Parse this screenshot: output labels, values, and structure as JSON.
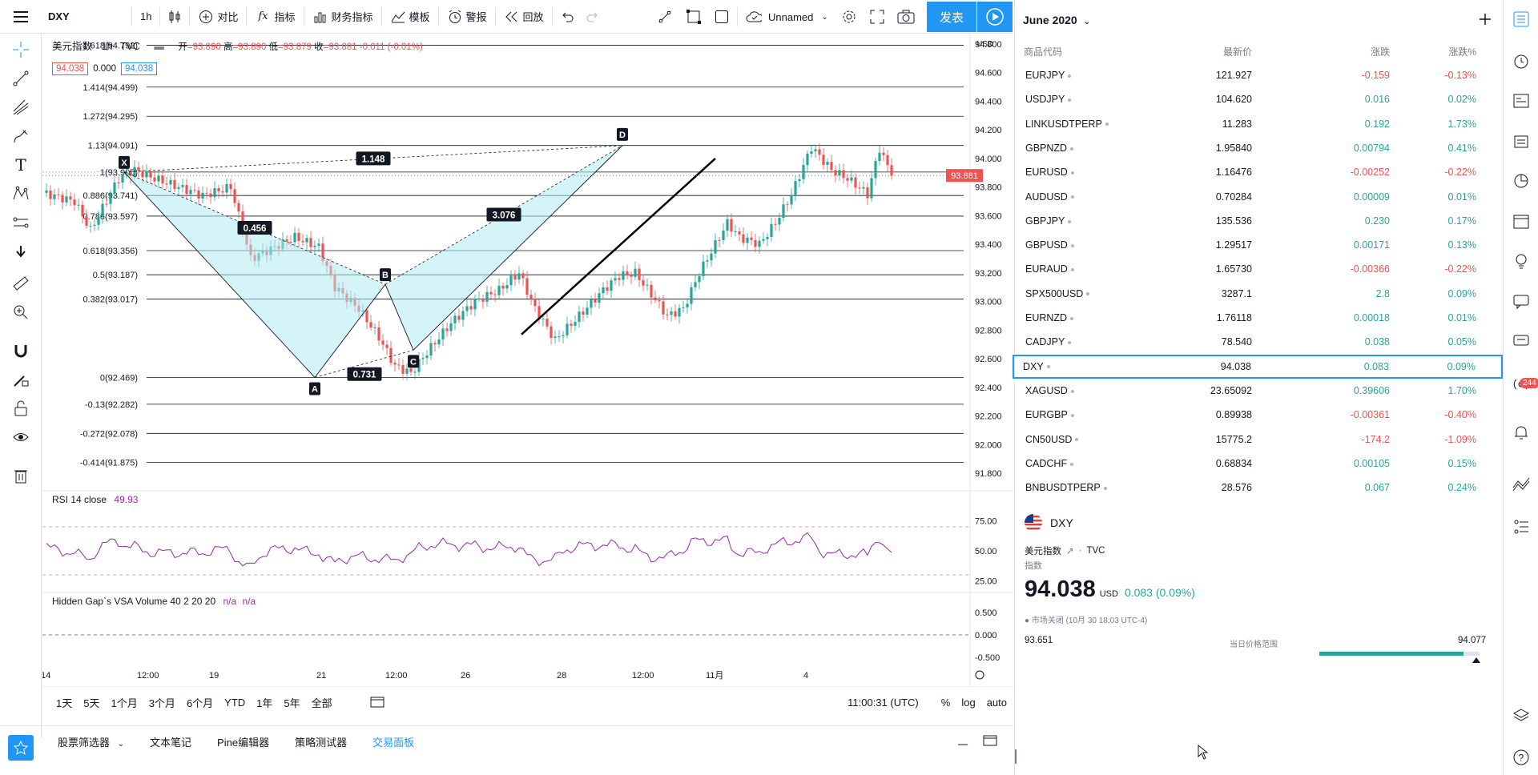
{
  "toolbar": {
    "symbol": "DXY",
    "interval": "1h",
    "compare": "对比",
    "indicators": "指标",
    "financials": "财务指标",
    "templates": "模板",
    "alert": "警报",
    "replay": "回放",
    "layout_name": "Unnamed",
    "publish": "发表"
  },
  "legend": {
    "name": "美元指数",
    "interval": "1h",
    "exchange": "TVC",
    "open_label": "开",
    "open": "=93.890",
    "high_label": "高",
    "high": "=93.890",
    "low_label": "低",
    "low": "=93.879",
    "close_label": "收",
    "close": "=93.881",
    "change": "-0.011 (-0.01%)",
    "bid": "94.038",
    "spread": "0.000",
    "ask": "94.038"
  },
  "fib_levels": [
    {
      "label": "1.618(94.792)",
      "value": 94.792
    },
    {
      "label": "1.414(94.499)",
      "value": 94.499
    },
    {
      "label": "1.272(94.295)",
      "value": 94.295
    },
    {
      "label": "1.13(94.091)",
      "value": 94.091
    },
    {
      "label": "1(93.905)",
      "value": 93.905
    },
    {
      "label": "0.886(93.741)",
      "value": 93.741
    },
    {
      "label": "0.786(93.597)",
      "value": 93.597
    },
    {
      "label": "0.618(93.356)",
      "value": 93.356
    },
    {
      "label": "0.5(93.187)",
      "value": 93.187
    },
    {
      "label": "0.382(93.017)",
      "value": 93.017
    },
    {
      "label": "0(92.469)",
      "value": 92.469
    },
    {
      "label": "-0.13(92.282)",
      "value": 92.282
    },
    {
      "label": "-0.272(92.078)",
      "value": 92.078
    },
    {
      "label": "-0.414(91.875)",
      "value": 91.875
    }
  ],
  "price_axis": {
    "unit": "USD",
    "ticks": [
      "94.800",
      "94.600",
      "94.400",
      "94.200",
      "94.000",
      "93.800",
      "93.600",
      "93.400",
      "93.200",
      "93.000",
      "92.800",
      "92.600",
      "92.400",
      "92.200",
      "92.000",
      "91.800"
    ],
    "last_price": "93.881"
  },
  "pattern": {
    "points": [
      "X",
      "A",
      "B",
      "C",
      "D"
    ],
    "ratios": [
      "1.148",
      "0.456",
      "0.731",
      "3.076"
    ]
  },
  "rsi": {
    "label": "RSI 14 close",
    "value": "49.93",
    "ticks": [
      "75.00",
      "50.00",
      "25.00"
    ]
  },
  "vsa": {
    "label": "Hidden Gap`s VSA Volume 40 2 20 20",
    "val1": "n/a",
    "val2": "n/a",
    "ticks": [
      "0.500",
      "0.000",
      "-0.500"
    ]
  },
  "time_axis": [
    "14",
    "12:00",
    "19",
    "21",
    "12:00",
    "26",
    "28",
    "12:00",
    "11月",
    "4"
  ],
  "range_bar": {
    "ranges": [
      "1天",
      "5天",
      "1个月",
      "3个月",
      "6个月",
      "YTD",
      "1年",
      "5年",
      "全部"
    ],
    "clock": "11:00:31 (UTC)",
    "percent": "%",
    "log": "log",
    "auto": "auto"
  },
  "bottom_tabs": [
    "股票筛选器",
    "文本笔记",
    "Pine编辑器",
    "策略测试器",
    "交易面板"
  ],
  "watchlist": {
    "title": "June 2020",
    "columns": {
      "symbol": "商品代码",
      "last": "最新价",
      "change": "涨跌",
      "change_pct": "涨跌%"
    },
    "rows": [
      {
        "symbol": "EURJPY",
        "last": "121.927",
        "change": "-0.159",
        "pct": "-0.13%",
        "dir": "neg"
      },
      {
        "symbol": "USDJPY",
        "last": "104.620",
        "change": "0.016",
        "pct": "0.02%",
        "dir": "pos"
      },
      {
        "symbol": "LINKUSDTPERP",
        "last": "11.283",
        "change": "0.192",
        "pct": "1.73%",
        "dir": "pos"
      },
      {
        "symbol": "GBPNZD",
        "last": "1.95840",
        "change": "0.00794",
        "pct": "0.41%",
        "dir": "pos"
      },
      {
        "symbol": "EURUSD",
        "last": "1.16476",
        "change": "-0.00252",
        "pct": "-0.22%",
        "dir": "neg"
      },
      {
        "symbol": "AUDUSD",
        "last": "0.70284",
        "change": "0.00009",
        "pct": "0.01%",
        "dir": "pos"
      },
      {
        "symbol": "GBPJPY",
        "last": "135.536",
        "change": "0.230",
        "pct": "0.17%",
        "dir": "pos"
      },
      {
        "symbol": "GBPUSD",
        "last": "1.29517",
        "change": "0.00171",
        "pct": "0.13%",
        "dir": "pos"
      },
      {
        "symbol": "EURAUD",
        "last": "1.65730",
        "change": "-0.00366",
        "pct": "-0.22%",
        "dir": "neg"
      },
      {
        "symbol": "SPX500USD",
        "last": "3287.1",
        "change": "2.8",
        "pct": "0.09%",
        "dir": "pos"
      },
      {
        "symbol": "EURNZD",
        "last": "1.76118",
        "change": "0.00018",
        "pct": "0.01%",
        "dir": "pos"
      },
      {
        "symbol": "CADJPY",
        "last": "78.540",
        "change": "0.038",
        "pct": "0.05%",
        "dir": "pos"
      },
      {
        "symbol": "DXY",
        "last": "94.038",
        "change": "0.083",
        "pct": "0.09%",
        "dir": "pos"
      },
      {
        "symbol": "XAGUSD",
        "last": "23.65092",
        "change": "0.39606",
        "pct": "1.70%",
        "dir": "pos"
      },
      {
        "symbol": "EURGBP",
        "last": "0.89938",
        "change": "-0.00361",
        "pct": "-0.40%",
        "dir": "neg"
      },
      {
        "symbol": "CN50USD",
        "last": "15775.2",
        "change": "-174.2",
        "pct": "-1.09%",
        "dir": "neg"
      },
      {
        "symbol": "CADCHF",
        "last": "0.68834",
        "change": "0.00105",
        "pct": "0.15%",
        "dir": "pos"
      },
      {
        "symbol": "BNBUSDTPERP",
        "last": "28.576",
        "change": "0.067",
        "pct": "0.24%",
        "dir": "pos"
      }
    ]
  },
  "details": {
    "symbol": "DXY",
    "name": "美元指数",
    "exchange": "TVC",
    "type": "指数",
    "price": "94.038",
    "currency": "USD",
    "change": "0.083 (0.09%)",
    "status": "市场关闭 (10月 30 18:03 UTC-4)",
    "range_low": "93.651",
    "range_label": "当日价格范围",
    "range_high": "94.077",
    "range_fill": 0.9
  },
  "notifications_badge": "244",
  "colors": {
    "accent": "#2196f3",
    "up": "#26a69a",
    "down": "#ef5350",
    "pattern_fill": "#b2ebf2",
    "rsi_line": "#9c27b0"
  }
}
